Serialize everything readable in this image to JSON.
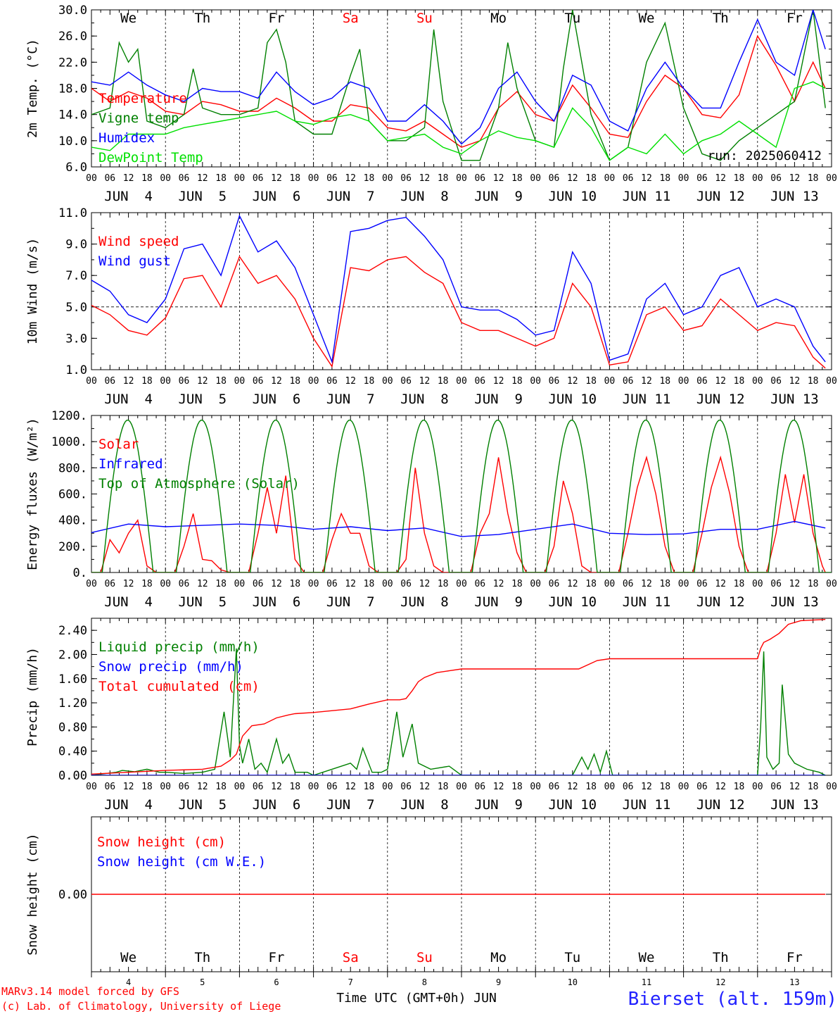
{
  "header_days": [
    "We",
    "Th",
    "Fr",
    "Sa",
    "Su",
    "Mo",
    "Tu",
    "We",
    "Th",
    "Fr"
  ],
  "weekend_days": [
    "Sa",
    "Su"
  ],
  "hour_ticks": [
    "00",
    "06",
    "12",
    "18"
  ],
  "date_labels": [
    "JUN  4",
    "JUN  5",
    "JUN  6",
    "JUN  7",
    "JUN  8",
    "JUN  9",
    "JUN 10",
    "JUN 11",
    "JUN 12",
    "JUN 13"
  ],
  "bottom_day_numbers": [
    "4",
    "5",
    "6",
    "7",
    "8",
    "9",
    "10",
    "11",
    "12",
    "13"
  ],
  "run_label": "run: 2025060412",
  "x_title": "Time UTC (GMT+0h) JUN",
  "credits": [
    "MARv3.14 model forced by GFS",
    "(c) Lab. of Climatology, University of Liege"
  ],
  "station": "Bierset (alt. 159m)",
  "colors": {
    "red": "#ff0000",
    "green": "#008000",
    "blue": "#0000ff",
    "lightgreen": "#00e000",
    "station": "#2222ff"
  },
  "chart_data": [
    {
      "type": "line",
      "ylabel": "2m Temp. (°C)",
      "ylim": [
        6,
        30
      ],
      "yticks": [
        "6.0",
        "10.0",
        "14.0",
        "18.0",
        "22.0",
        "26.0",
        "30.0"
      ],
      "x_unit": "hours since Jun 4 00 UTC",
      "series": [
        {
          "name": "Temperature",
          "color": "#ff0000",
          "x": [
            0,
            6,
            12,
            18,
            24,
            30,
            36,
            42,
            48,
            54,
            60,
            66,
            72,
            78,
            84,
            90,
            96,
            102,
            108,
            114,
            120,
            126,
            132,
            138,
            144,
            150,
            156,
            162,
            168,
            174,
            180,
            186,
            192,
            198,
            204,
            210,
            216,
            222,
            228,
            234,
            238
          ],
          "y": [
            18,
            16,
            17.5,
            16.5,
            14.5,
            14,
            16,
            15.5,
            14.5,
            14.5,
            16.5,
            15,
            13,
            13,
            15.5,
            15,
            12,
            11.5,
            13,
            11,
            9,
            10,
            15,
            17.5,
            14,
            13,
            18.5,
            15,
            11,
            10.5,
            16,
            20,
            18,
            14,
            13.5,
            17,
            26,
            21.5,
            16,
            22,
            18
          ]
        },
        {
          "name": "Vigne temp",
          "color": "#008000",
          "x": [
            0,
            6,
            9,
            12,
            15,
            18,
            24,
            30,
            33,
            36,
            42,
            48,
            54,
            57,
            60,
            63,
            66,
            72,
            78,
            84,
            87,
            90,
            96,
            102,
            108,
            111,
            114,
            120,
            126,
            132,
            135,
            138,
            144,
            150,
            153,
            156,
            162,
            168,
            174,
            180,
            186,
            192,
            198,
            204,
            210,
            216,
            222,
            228,
            234,
            238
          ],
          "y": [
            14,
            15,
            25,
            22,
            24,
            13,
            12,
            14,
            21,
            15,
            14,
            14,
            15,
            25,
            27,
            22,
            13,
            11,
            11,
            20,
            24,
            13,
            10,
            10,
            12,
            27,
            16,
            7,
            7,
            15,
            25,
            18,
            10,
            9,
            21,
            30,
            14,
            7,
            9,
            22,
            28,
            15,
            8,
            7,
            10,
            12,
            14,
            16,
            30,
            15
          ]
        },
        {
          "name": "Humidex",
          "color": "#0000ff",
          "x": [
            0,
            6,
            12,
            18,
            24,
            30,
            36,
            42,
            48,
            54,
            60,
            66,
            72,
            78,
            84,
            90,
            96,
            102,
            108,
            114,
            120,
            126,
            132,
            138,
            144,
            150,
            156,
            162,
            168,
            174,
            180,
            186,
            192,
            198,
            204,
            210,
            216,
            222,
            228,
            234,
            238
          ],
          "y": [
            19,
            18.5,
            20.5,
            18.5,
            17,
            16,
            18,
            17.5,
            17.5,
            16.5,
            20.5,
            17.5,
            15.5,
            16.5,
            19,
            18,
            13,
            13,
            15.5,
            13,
            9.5,
            12,
            18,
            20.5,
            16,
            13,
            20,
            18.5,
            13,
            11.5,
            18,
            22,
            18,
            15,
            15,
            22,
            28.5,
            22,
            20,
            30,
            24
          ]
        },
        {
          "name": "DewPoint Temp",
          "color": "#00e000",
          "x": [
            0,
            6,
            12,
            18,
            24,
            30,
            36,
            42,
            48,
            54,
            60,
            66,
            72,
            78,
            84,
            90,
            96,
            102,
            108,
            114,
            120,
            126,
            132,
            138,
            144,
            150,
            156,
            162,
            168,
            174,
            180,
            186,
            192,
            198,
            204,
            210,
            216,
            222,
            228,
            234,
            238
          ],
          "y": [
            9,
            8.5,
            11,
            11,
            11,
            12,
            12.5,
            13,
            13.5,
            14,
            14.5,
            13,
            12.5,
            13.5,
            14,
            13,
            10,
            10.5,
            11,
            9,
            8,
            10,
            11.5,
            10.5,
            10,
            9,
            15,
            12,
            7,
            9,
            8,
            11,
            8,
            10,
            11,
            13,
            11,
            9,
            18,
            19,
            18
          ]
        }
      ]
    },
    {
      "type": "line",
      "ylabel": "10m Wind (m/s)",
      "ylim": [
        1,
        11
      ],
      "yticks": [
        "1.0",
        "3.0",
        "5.0",
        "7.0",
        "9.0",
        "11.0"
      ],
      "reference_line": 5.0,
      "x_unit": "hours since Jun 4 00 UTC",
      "series": [
        {
          "name": "Wind speed",
          "color": "#ff0000",
          "x": [
            0,
            6,
            12,
            18,
            24,
            30,
            36,
            42,
            48,
            54,
            60,
            66,
            72,
            78,
            84,
            90,
            96,
            102,
            108,
            114,
            120,
            126,
            132,
            138,
            144,
            150,
            156,
            162,
            168,
            174,
            180,
            186,
            192,
            198,
            204,
            210,
            216,
            222,
            228,
            234,
            238
          ],
          "y": [
            5.1,
            4.5,
            3.5,
            3.2,
            4.3,
            6.8,
            7.0,
            5.0,
            8.2,
            6.5,
            7.0,
            5.5,
            3.0,
            1.2,
            7.5,
            7.3,
            8.0,
            8.2,
            7.2,
            6.5,
            4.0,
            3.5,
            3.5,
            3.0,
            2.5,
            3.0,
            6.5,
            5.0,
            1.3,
            1.5,
            4.5,
            5.0,
            3.5,
            3.8,
            5.5,
            4.5,
            3.5,
            4.0,
            3.8,
            1.8,
            1.1
          ]
        },
        {
          "name": "Wind gust",
          "color": "#0000ff",
          "x": [
            0,
            6,
            12,
            18,
            24,
            30,
            36,
            42,
            48,
            54,
            60,
            66,
            72,
            78,
            84,
            90,
            96,
            102,
            108,
            114,
            120,
            126,
            132,
            138,
            144,
            150,
            156,
            162,
            168,
            174,
            180,
            186,
            192,
            198,
            204,
            210,
            216,
            222,
            228,
            234,
            238
          ],
          "y": [
            6.7,
            6.0,
            4.5,
            4.0,
            5.5,
            8.7,
            9.0,
            7.0,
            10.8,
            8.5,
            9.2,
            7.5,
            4.5,
            1.5,
            9.8,
            10.0,
            10.5,
            10.7,
            9.5,
            8.0,
            5.0,
            4.8,
            4.8,
            4.2,
            3.2,
            3.5,
            8.5,
            6.5,
            1.6,
            2.0,
            5.5,
            6.5,
            4.5,
            5.0,
            7.0,
            7.5,
            5.0,
            5.5,
            5.0,
            2.5,
            1.5
          ]
        }
      ]
    },
    {
      "type": "line",
      "ylabel": "Energy fluxes (W/m²)",
      "ylim": [
        0,
        1200
      ],
      "yticks": [
        "0.",
        "200.",
        "400.",
        "600.",
        "800.",
        "1000.",
        "1200."
      ],
      "x_unit": "hours since Jun 4 00 UTC",
      "series": [
        {
          "name": "Solar",
          "color": "#ff0000",
          "x": [
            0,
            3,
            6,
            9,
            12,
            15,
            18,
            21,
            24,
            27,
            30,
            33,
            36,
            39,
            42,
            45,
            48,
            51,
            54,
            57,
            60,
            63,
            66,
            69,
            72,
            75,
            78,
            81,
            84,
            87,
            90,
            93,
            96,
            99,
            102,
            105,
            108,
            111,
            114,
            117,
            120,
            123,
            126,
            129,
            132,
            135,
            138,
            141,
            144,
            147,
            150,
            153,
            156,
            159,
            162,
            165,
            168,
            171,
            174,
            177,
            180,
            183,
            186,
            189,
            192,
            195,
            198,
            201,
            204,
            207,
            210,
            213,
            216,
            219,
            222,
            225,
            228,
            231,
            234,
            237,
            238
          ],
          "y": [
            0,
            0,
            250,
            150,
            300,
            400,
            50,
            0,
            0,
            0,
            200,
            450,
            100,
            90,
            20,
            0,
            0,
            0,
            300,
            650,
            300,
            740,
            100,
            0,
            0,
            0,
            250,
            450,
            300,
            300,
            50,
            0,
            0,
            0,
            100,
            800,
            300,
            50,
            0,
            0,
            0,
            0,
            300,
            450,
            880,
            450,
            150,
            0,
            0,
            0,
            200,
            700,
            450,
            50,
            0,
            0,
            0,
            0,
            300,
            650,
            880,
            600,
            200,
            0,
            0,
            0,
            300,
            650,
            880,
            600,
            200,
            0,
            0,
            0,
            300,
            750,
            380,
            750,
            300,
            50,
            0
          ]
        },
        {
          "name": "Infrared",
          "color": "#0000ff",
          "x": [
            0,
            12,
            24,
            36,
            48,
            60,
            72,
            84,
            96,
            108,
            120,
            132,
            144,
            156,
            168,
            180,
            192,
            204,
            216,
            228,
            238
          ],
          "y": [
            305,
            370,
            350,
            360,
            370,
            360,
            330,
            350,
            320,
            340,
            275,
            290,
            330,
            370,
            300,
            290,
            295,
            330,
            330,
            390,
            340
          ]
        },
        {
          "name": "Top of Atmosphere (Solar)",
          "color": "#008000",
          "daily_peak": 1165,
          "sunrise_utc": 3.5,
          "sunset_utc": 20.0
        }
      ]
    },
    {
      "type": "line",
      "ylabel": "Precip (mm/h)",
      "ylim": [
        0,
        2.6
      ],
      "yticks": [
        "0.00",
        "0.40",
        "0.80",
        "1.20",
        "1.60",
        "2.00",
        "2.40"
      ],
      "x_unit": "hours since Jun 4 00 UTC",
      "series": [
        {
          "name": "Liquid precip (mm/h)",
          "color": "#008000",
          "x": [
            0,
            8,
            10,
            14,
            18,
            22,
            24,
            30,
            36,
            40,
            43,
            45,
            47,
            48,
            49,
            51,
            53,
            55,
            57,
            60,
            62,
            64,
            66,
            70,
            72,
            78,
            84,
            86,
            88,
            91,
            94,
            96,
            99,
            101,
            104,
            106,
            110,
            116,
            120,
            144,
            156,
            159,
            161,
            163,
            165,
            167,
            169,
            192,
            216,
            217,
            218,
            219,
            221,
            223,
            224,
            226,
            228,
            232,
            236,
            238
          ],
          "y": [
            0,
            0.05,
            0.08,
            0.06,
            0.1,
            0.05,
            0.05,
            0.03,
            0.05,
            0.1,
            1.05,
            0.3,
            2.1,
            0.5,
            0.2,
            0.6,
            0.1,
            0.2,
            0.05,
            0.6,
            0.2,
            0.35,
            0.05,
            0.05,
            0,
            0.1,
            0.2,
            0.1,
            0.45,
            0.05,
            0.05,
            0.1,
            1.05,
            0.3,
            0.85,
            0.2,
            0.1,
            0.15,
            0,
            0,
            0,
            0.3,
            0.1,
            0.35,
            0.05,
            0.4,
            0,
            0,
            0,
            0.8,
            2.05,
            0.3,
            0.1,
            0.2,
            1.5,
            0.35,
            0.2,
            0.1,
            0.05,
            0
          ]
        },
        {
          "name": "Snow precip (mm/h)",
          "color": "#0000ff",
          "x": [
            0,
            238
          ],
          "y": [
            0,
            0
          ]
        },
        {
          "name": "Total cumulated (cm)",
          "color": "#ff0000",
          "x": [
            0,
            12,
            24,
            36,
            42,
            45,
            47,
            49,
            52,
            56,
            60,
            64,
            66,
            72,
            84,
            90,
            96,
            100,
            102,
            104,
            106,
            108,
            112,
            116,
            120,
            144,
            158,
            164,
            168,
            192,
            216,
            217,
            218,
            220,
            223,
            226,
            230,
            238
          ],
          "y": [
            0.02,
            0.05,
            0.08,
            0.1,
            0.15,
            0.25,
            0.35,
            0.65,
            0.82,
            0.85,
            0.95,
            1.0,
            1.02,
            1.04,
            1.1,
            1.18,
            1.25,
            1.25,
            1.27,
            1.4,
            1.55,
            1.62,
            1.7,
            1.73,
            1.76,
            1.76,
            1.76,
            1.9,
            1.93,
            1.93,
            1.93,
            2.1,
            2.2,
            2.25,
            2.35,
            2.5,
            2.56,
            2.58
          ]
        }
      ]
    },
    {
      "type": "line",
      "ylabel": "Snow height (cm)",
      "yticks": [
        "0.00"
      ],
      "series": [
        {
          "name": "Snow height (cm)",
          "color": "#ff0000",
          "x": [
            0,
            238
          ],
          "y": [
            0,
            0
          ]
        },
        {
          "name": "Snow height (cm W.E.)",
          "color": "#0000ff",
          "x": [],
          "y": []
        }
      ]
    }
  ]
}
